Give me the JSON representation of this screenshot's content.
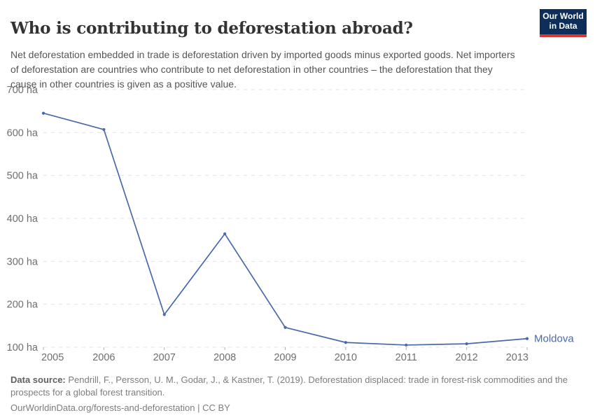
{
  "header": {
    "title": "Who is contributing to deforestation abroad?",
    "subtitle": "Net deforestation embedded in trade is deforestation driven by imported goods minus exported goods. Net importers of deforestation are countries who contribute to net deforestation in other countries – the deforestation that they cause in other countries is given as a positive value."
  },
  "logo": {
    "line1": "Our World",
    "line2": "in Data",
    "bg_color": "#0d2e5a",
    "bar_color": "#d43830"
  },
  "chart_data": {
    "type": "line",
    "title": "Who is contributing to deforestation abroad?",
    "x": [
      2005,
      2006,
      2007,
      2008,
      2009,
      2010,
      2011,
      2012,
      2013
    ],
    "series": [
      {
        "name": "Moldova",
        "values": [
          645,
          607,
          176,
          364,
          146,
          111,
          105,
          108,
          120
        ]
      }
    ],
    "unit": "ha",
    "ylim": [
      100,
      700
    ],
    "yticks": [
      100,
      200,
      300,
      400,
      500,
      600,
      700
    ],
    "ytick_suffix": " ha",
    "grid": "horizontal-dashed",
    "legend_position": "end-of-line",
    "line_color": "#4a69a8",
    "gridline_color": "#e2e2e2",
    "tick_color": "#b0b0b0",
    "axis_label_color": "#6e6e6e"
  },
  "footer": {
    "datasource_label": "Data source:",
    "datasource_text": "Pendrill, F., Persson, U. M., Godar, J., & Kastner, T. (2019). Deforestation displaced: trade in forest-risk commodities and the prospects for a global forest transition.",
    "permalink": "OurWorldinData.org/forests-and-deforestation | CC BY"
  }
}
